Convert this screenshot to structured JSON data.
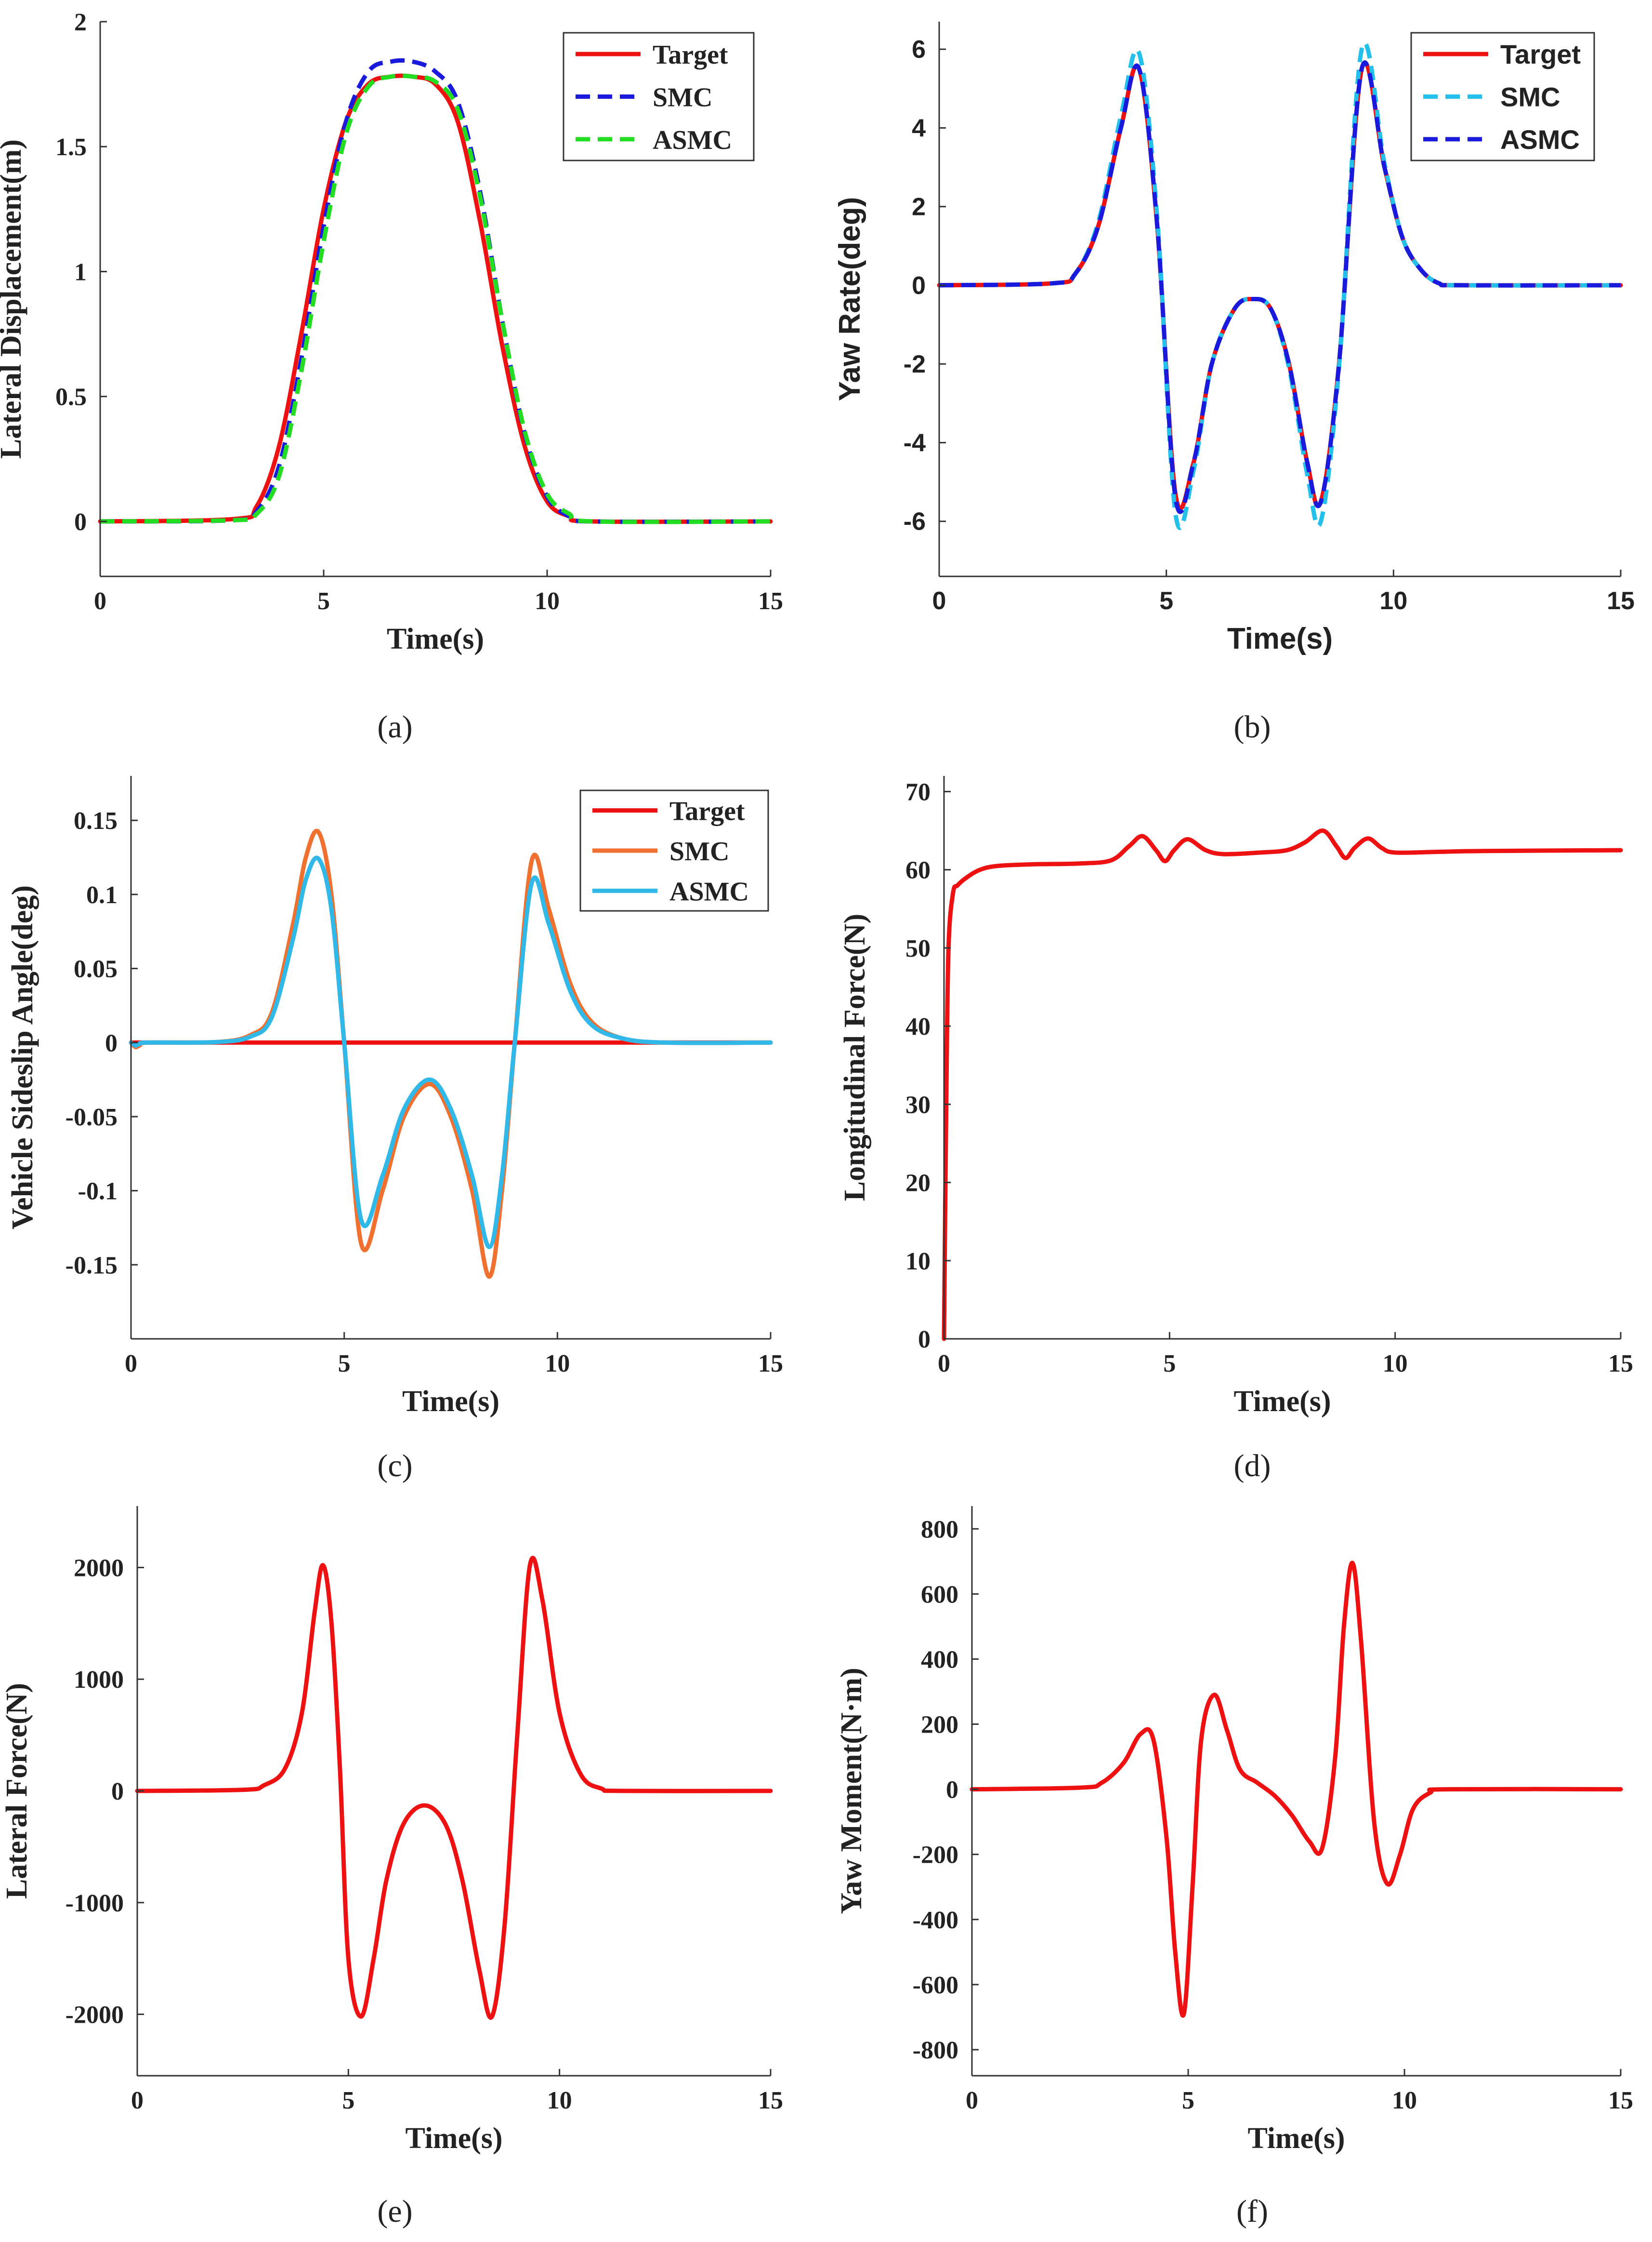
{
  "figure": {
    "colors": {
      "red": "#ee1111",
      "blue": "#1a1adc",
      "green": "#22dd22",
      "cyan": "#22c0ea",
      "orange": "#f07030",
      "sky": "#30b8e8",
      "axis": "#333333"
    }
  },
  "chart_data": [
    {
      "id": "a",
      "caption": "(a)",
      "type": "line",
      "xlabel": "Time(s)",
      "ylabel": "Lateral Displacement(m)",
      "xlim": [
        0,
        15
      ],
      "ylim": [
        -0.22,
        2
      ],
      "xticks": [
        0,
        5,
        10,
        15
      ],
      "xtick_labels": [
        "0",
        "5",
        "10",
        "15"
      ],
      "yticks": [
        0,
        0.5,
        1,
        1.5,
        2
      ],
      "ytick_labels": [
        "0",
        "0.5",
        "1",
        "1.5",
        "2"
      ],
      "font": "serif",
      "legend": {
        "location": "top-right"
      },
      "series": [
        {
          "name": "Target",
          "color": "red",
          "dash": "solid",
          "x": [
            0,
            3,
            3.5,
            4,
            4.5,
            5,
            5.5,
            6,
            6.5,
            7,
            7.5,
            8,
            8.5,
            9,
            9.5,
            10,
            10.5,
            11,
            15
          ],
          "y": [
            0,
            0.01,
            0.06,
            0.3,
            0.75,
            1.25,
            1.6,
            1.75,
            1.78,
            1.78,
            1.75,
            1.6,
            1.2,
            0.7,
            0.3,
            0.08,
            0.02,
            0,
            0
          ]
        },
        {
          "name": "SMC",
          "color": "blue",
          "dash": "dashed",
          "x": [
            0,
            3,
            3.5,
            4,
            4.5,
            5,
            5.5,
            6,
            6.5,
            7,
            7.5,
            8,
            8.5,
            9,
            9.5,
            10,
            10.5,
            11,
            15
          ],
          "y": [
            0,
            0.005,
            0.04,
            0.22,
            0.65,
            1.18,
            1.6,
            1.8,
            1.84,
            1.84,
            1.8,
            1.68,
            1.32,
            0.8,
            0.35,
            0.1,
            0.02,
            0,
            0
          ]
        },
        {
          "name": "ASMC",
          "color": "green",
          "dash": "dashed",
          "x": [
            0,
            3,
            3.5,
            4,
            4.5,
            5,
            5.5,
            6,
            6.5,
            7,
            7.5,
            8,
            8.5,
            9,
            9.5,
            10,
            10.5,
            11,
            15
          ],
          "y": [
            0,
            0.005,
            0.03,
            0.18,
            0.6,
            1.12,
            1.55,
            1.74,
            1.78,
            1.78,
            1.76,
            1.65,
            1.3,
            0.8,
            0.36,
            0.11,
            0.03,
            0,
            0
          ]
        }
      ]
    },
    {
      "id": "b",
      "caption": "(b)",
      "type": "line",
      "xlabel": "Time(s)",
      "ylabel": "Yaw Rate(deg)",
      "xlim": [
        0,
        15
      ],
      "ylim": [
        -7.4,
        6.7
      ],
      "xticks": [
        0,
        5,
        10,
        15
      ],
      "xtick_labels": [
        "0",
        "5",
        "10",
        "15"
      ],
      "yticks": [
        -6,
        -4,
        -2,
        0,
        2,
        4,
        6
      ],
      "ytick_labels": [
        "-6",
        "-4",
        "-2",
        "0",
        "2",
        "4",
        "6"
      ],
      "font": "sans",
      "legend": {
        "location": "top-right"
      },
      "series": [
        {
          "name": "Target",
          "color": "red",
          "dash": "solid",
          "x": [
            0,
            2.5,
            3,
            3.5,
            4,
            4.4,
            4.8,
            5.2,
            5.6,
            6,
            6.5,
            6.9,
            7.3,
            7.7,
            8.1,
            8.4,
            8.8,
            9.3,
            9.8,
            10.2,
            10.6,
            11,
            11.5,
            15
          ],
          "y": [
            0,
            0.05,
            0.3,
            1.5,
            4,
            5.5,
            1.5,
            -5.3,
            -4.5,
            -2,
            -0.6,
            -0.35,
            -0.6,
            -2,
            -4.5,
            -5.5,
            -2,
            5.5,
            3,
            1.2,
            0.4,
            0.05,
            0,
            0
          ]
        },
        {
          "name": "SMC",
          "color": "cyan",
          "dash": "dashed",
          "x": [
            0,
            2.5,
            3,
            3.5,
            4,
            4.4,
            4.8,
            5.2,
            5.6,
            6,
            6.5,
            6.9,
            7.3,
            7.7,
            8.1,
            8.4,
            8.8,
            9.3,
            9.8,
            10.2,
            10.6,
            11,
            11.5,
            15
          ],
          "y": [
            0,
            0.05,
            0.3,
            1.6,
            4.3,
            5.9,
            1.7,
            -5.8,
            -4.7,
            -2,
            -0.6,
            -0.35,
            -0.6,
            -2.1,
            -4.8,
            -6,
            -2.1,
            6,
            3.1,
            1.2,
            0.4,
            0.05,
            0,
            0
          ]
        },
        {
          "name": "ASMC",
          "color": "blue",
          "dash": "dashed",
          "x": [
            0,
            2.5,
            3,
            3.5,
            4,
            4.4,
            4.8,
            5.2,
            5.6,
            6,
            6.5,
            6.9,
            7.3,
            7.7,
            8.1,
            8.4,
            8.8,
            9.3,
            9.8,
            10.2,
            10.6,
            11,
            11.5,
            15
          ],
          "y": [
            0,
            0.05,
            0.3,
            1.5,
            4,
            5.5,
            1.5,
            -5.4,
            -4.5,
            -2,
            -0.6,
            -0.35,
            -0.6,
            -2,
            -4.5,
            -5.5,
            -2,
            5.5,
            3,
            1.2,
            0.4,
            0.05,
            0,
            0
          ]
        }
      ]
    },
    {
      "id": "c",
      "caption": "(c)",
      "type": "line",
      "xlabel": "Time(s)",
      "ylabel": "Vehicle Sideslip Angle(deg)",
      "xlim": [
        0,
        15
      ],
      "ylim": [
        -0.2,
        0.18
      ],
      "xticks": [
        0,
        5,
        10,
        15
      ],
      "xtick_labels": [
        "0",
        "5",
        "10",
        "15"
      ],
      "yticks": [
        -0.15,
        -0.1,
        -0.05,
        0,
        0.05,
        0.1,
        0.15
      ],
      "ytick_labels": [
        "-0.15",
        "-0.1",
        "-0.05",
        "0",
        "0.05",
        "0.1",
        "0.15"
      ],
      "font": "serif",
      "legend": {
        "location": "top-right"
      },
      "series": [
        {
          "name": "Target",
          "color": "red",
          "dash": "solid",
          "x": [
            0,
            15
          ],
          "y": [
            0,
            0
          ]
        },
        {
          "name": "SMC",
          "color": "orange",
          "dash": "solid",
          "x": [
            0,
            0.1,
            0.2,
            0.4,
            2,
            2.8,
            3.3,
            3.8,
            4.1,
            4.4,
            4.7,
            5,
            5.4,
            5.9,
            6.4,
            7,
            7.5,
            8,
            8.4,
            8.7,
            9,
            9.4,
            9.8,
            10.3,
            10.8,
            11.5,
            12.5,
            15
          ],
          "y": [
            0,
            -0.003,
            -0.002,
            0,
            0.0003,
            0.005,
            0.02,
            0.08,
            0.125,
            0.142,
            0.1,
            0,
            -0.136,
            -0.1,
            -0.05,
            -0.028,
            -0.05,
            -0.1,
            -0.158,
            -0.1,
            0,
            0.123,
            0.09,
            0.04,
            0.014,
            0.003,
            0,
            0
          ]
        },
        {
          "name": "ASMC",
          "color": "sky",
          "dash": "solid",
          "x": [
            0,
            0.1,
            0.2,
            0.4,
            2,
            2.8,
            3.3,
            3.8,
            4.1,
            4.4,
            4.7,
            5,
            5.4,
            5.9,
            6.4,
            7,
            7.5,
            8,
            8.4,
            8.7,
            9,
            9.4,
            9.8,
            10.3,
            10.8,
            11.5,
            12.5,
            15
          ],
          "y": [
            0,
            -0.002,
            -0.001,
            0,
            0.0003,
            0.004,
            0.017,
            0.07,
            0.11,
            0.124,
            0.09,
            0,
            -0.12,
            -0.09,
            -0.045,
            -0.025,
            -0.045,
            -0.09,
            -0.138,
            -0.09,
            0,
            0.108,
            0.08,
            0.035,
            0.012,
            0.003,
            0,
            0
          ]
        }
      ]
    },
    {
      "id": "d",
      "caption": "(d)",
      "type": "line",
      "xlabel": "Time(s)",
      "ylabel": "Longitudinal Force(N)",
      "xlim": [
        0,
        15
      ],
      "ylim": [
        0,
        72
      ],
      "xticks": [
        0,
        5,
        10,
        15
      ],
      "xtick_labels": [
        "0",
        "5",
        "10",
        "15"
      ],
      "yticks": [
        0,
        10,
        20,
        30,
        40,
        50,
        60,
        70
      ],
      "ytick_labels": [
        "0",
        "10",
        "20",
        "30",
        "40",
        "50",
        "60",
        "70"
      ],
      "font": "serif",
      "series": [
        {
          "name": "Longitudinal Force",
          "color": "red",
          "dash": "solid",
          "x": [
            0,
            0.05,
            0.1,
            0.2,
            0.3,
            0.5,
            0.8,
            1.2,
            2,
            3,
            3.7,
            4.1,
            4.4,
            4.7,
            4.9,
            5.1,
            5.4,
            5.8,
            6.2,
            7,
            7.6,
            8,
            8.4,
            8.7,
            8.9,
            9.1,
            9.4,
            9.7,
            10,
            11,
            12,
            15
          ],
          "y": [
            0,
            30,
            50,
            57,
            58,
            59,
            60,
            60.5,
            60.7,
            60.8,
            61.2,
            63,
            64.3,
            62.5,
            61.1,
            62.5,
            63.9,
            62.5,
            62,
            62.2,
            62.5,
            63.5,
            65,
            63,
            61.5,
            62.8,
            64,
            62.8,
            62.2,
            62.3,
            62.4,
            62.5
          ]
        }
      ]
    },
    {
      "id": "e",
      "caption": "(e)",
      "type": "line",
      "xlabel": "Time(s)",
      "ylabel": "Lateral Force(N)",
      "xlim": [
        0,
        15
      ],
      "ylim": [
        -2550,
        2550
      ],
      "xticks": [
        0,
        5,
        10,
        15
      ],
      "xtick_labels": [
        "0",
        "5",
        "10",
        "15"
      ],
      "yticks": [
        -2000,
        -1000,
        0,
        1000,
        2000
      ],
      "ytick_labels": [
        "-2000",
        "-1000",
        "0",
        "1000",
        "2000"
      ],
      "font": "serif",
      "series": [
        {
          "name": "Lateral Force",
          "color": "red",
          "dash": "solid",
          "x": [
            0,
            2.5,
            3,
            3.5,
            3.9,
            4.2,
            4.4,
            4.6,
            4.8,
            5,
            5.3,
            5.6,
            5.9,
            6.3,
            6.8,
            7.3,
            7.7,
            8.1,
            8.4,
            8.7,
            9,
            9.3,
            9.6,
            10,
            10.5,
            11,
            11.5,
            15
          ],
          "y": [
            0,
            10,
            50,
            200,
            700,
            1600,
            2020,
            1500,
            200,
            -1500,
            -2020,
            -1500,
            -800,
            -300,
            -130,
            -300,
            -800,
            -1600,
            -2020,
            -1200,
            500,
            2020,
            1700,
            700,
            150,
            20,
            0,
            0
          ]
        }
      ]
    },
    {
      "id": "f",
      "caption": "(f)",
      "type": "line",
      "xlabel": "Time(s)",
      "ylabel": "Yaw Moment(N·m)",
      "xlim": [
        0,
        15
      ],
      "ylim": [
        -880,
        870
      ],
      "xticks": [
        0,
        5,
        10,
        15
      ],
      "xtick_labels": [
        "0",
        "5",
        "10",
        "15"
      ],
      "yticks": [
        -800,
        -600,
        -400,
        -200,
        0,
        200,
        400,
        600,
        800
      ],
      "ytick_labels": [
        "-800",
        "-600",
        "-400",
        "-200",
        "0",
        "200",
        "400",
        "600",
        "800"
      ],
      "font": "serif",
      "series": [
        {
          "name": "Yaw Moment",
          "color": "red",
          "dash": "solid",
          "x": [
            0,
            2.5,
            3,
            3.5,
            3.9,
            4.2,
            4.5,
            4.7,
            4.9,
            5.1,
            5.3,
            5.6,
            5.9,
            6.2,
            6.6,
            7,
            7.4,
            7.8,
            8.1,
            8.4,
            8.6,
            8.8,
            9,
            9.3,
            9.6,
            9.9,
            10.2,
            10.6,
            11,
            15
          ],
          "y": [
            0,
            5,
            20,
            80,
            170,
            150,
            -150,
            -500,
            -690,
            -300,
            150,
            290,
            180,
            60,
            20,
            -20,
            -80,
            -160,
            -180,
            100,
            500,
            695,
            450,
            -100,
            -290,
            -200,
            -60,
            -10,
            0,
            0
          ]
        }
      ]
    }
  ]
}
